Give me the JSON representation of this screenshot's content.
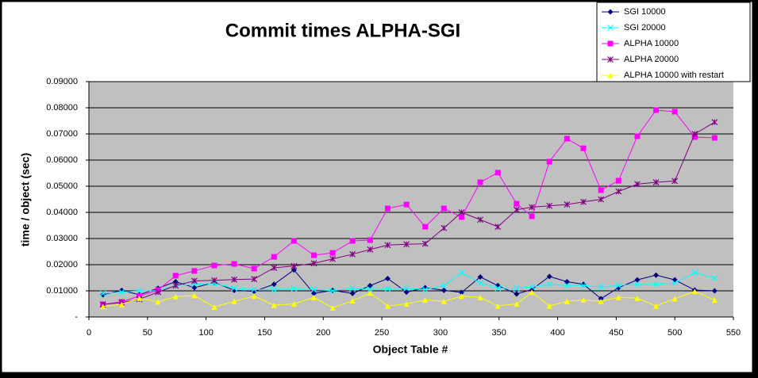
{
  "chart_data": {
    "type": "line",
    "title": "Commit times ALPHA-SGI",
    "xlabel": "Object Table #",
    "ylabel": "time / object (sec)",
    "x": [
      12,
      28,
      43,
      59,
      74,
      90,
      107,
      124,
      141,
      158,
      175,
      192,
      208,
      225,
      240,
      255,
      271,
      287,
      303,
      318,
      334,
      349,
      365,
      378,
      393,
      408,
      422,
      437,
      452,
      468,
      484,
      500,
      517,
      534
    ],
    "xlim": [
      0,
      550
    ],
    "xticks": [
      0,
      50,
      100,
      150,
      200,
      250,
      300,
      350,
      400,
      450,
      500,
      550
    ],
    "ylim": [
      0,
      0.09
    ],
    "yticks": [
      {
        "value": 0,
        "label": "-"
      },
      {
        "value": 0.01,
        "label": "0.01000"
      },
      {
        "value": 0.02,
        "label": "0.02000"
      },
      {
        "value": 0.03,
        "label": "0.03000"
      },
      {
        "value": 0.04,
        "label": "0.04000"
      },
      {
        "value": 0.05,
        "label": "0.05000"
      },
      {
        "value": 0.06,
        "label": "0.06000"
      },
      {
        "value": 0.07,
        "label": "0.07000"
      },
      {
        "value": 0.08,
        "label": "0.08000"
      },
      {
        "value": 0.09,
        "label": "0.09000"
      }
    ],
    "grid": true,
    "legend": "top-right",
    "series": [
      {
        "name": "SGI 10000",
        "color": "#000080",
        "marker": "diamond",
        "values": [
          0.0085,
          0.0102,
          0.0085,
          0.011,
          0.0135,
          0.0112,
          0.0132,
          0.0102,
          0.0098,
          0.0125,
          0.018,
          0.009,
          0.0102,
          0.009,
          0.012,
          0.0147,
          0.0095,
          0.0112,
          0.0102,
          0.0094,
          0.0153,
          0.012,
          0.0088,
          0.0105,
          0.0155,
          0.0135,
          0.0125,
          0.007,
          0.0112,
          0.0142,
          0.016,
          0.0142,
          0.0103,
          0.01
        ]
      },
      {
        "name": "SGI 20000",
        "color": "#00ffff",
        "marker": "x",
        "values": [
          0.009,
          0.0095,
          0.01,
          0.01,
          0.012,
          0.0125,
          0.0128,
          0.011,
          0.0105,
          0.0105,
          0.0108,
          0.0105,
          0.01,
          0.011,
          0.0105,
          0.0108,
          0.011,
          0.0105,
          0.012,
          0.017,
          0.013,
          0.011,
          0.011,
          0.0115,
          0.0125,
          0.012,
          0.012,
          0.0115,
          0.012,
          0.0125,
          0.0125,
          0.013,
          0.017,
          0.0148
        ]
      },
      {
        "name": "ALPHA 10000",
        "color": "#ff00ff",
        "marker": "square",
        "values": [
          0.0048,
          0.0058,
          0.008,
          0.0103,
          0.0158,
          0.0176,
          0.0197,
          0.0203,
          0.0185,
          0.023,
          0.0291,
          0.0236,
          0.0245,
          0.0291,
          0.0294,
          0.0415,
          0.043,
          0.0345,
          0.0415,
          0.0382,
          0.0515,
          0.0552,
          0.0433,
          0.0385,
          0.0594,
          0.0682,
          0.0645,
          0.0485,
          0.0521,
          0.0691,
          0.0791,
          0.0785,
          0.0688,
          0.0685
        ]
      },
      {
        "name": "ALPHA 20000",
        "color": "#800080",
        "marker": "star",
        "values": [
          0.0048,
          0.0055,
          0.0068,
          0.0095,
          0.012,
          0.0138,
          0.014,
          0.0143,
          0.0145,
          0.0188,
          0.0195,
          0.0205,
          0.0222,
          0.024,
          0.0258,
          0.0275,
          0.0278,
          0.028,
          0.034,
          0.04,
          0.0372,
          0.0345,
          0.041,
          0.042,
          0.0425,
          0.043,
          0.044,
          0.045,
          0.048,
          0.0508,
          0.0515,
          0.052,
          0.07,
          0.0745
        ]
      },
      {
        "name": "ALPHA 10000 with restart",
        "color": "#ffff00",
        "marker": "triangle",
        "values": [
          0.004,
          0.0048,
          0.0072,
          0.0058,
          0.0078,
          0.0082,
          0.0038,
          0.006,
          0.008,
          0.0045,
          0.005,
          0.0075,
          0.0035,
          0.0062,
          0.0092,
          0.0042,
          0.005,
          0.0065,
          0.006,
          0.008,
          0.0075,
          0.0042,
          0.005,
          0.0095,
          0.0042,
          0.006,
          0.0065,
          0.006,
          0.0075,
          0.0072,
          0.0042,
          0.007,
          0.0098,
          0.0065
        ]
      }
    ]
  }
}
